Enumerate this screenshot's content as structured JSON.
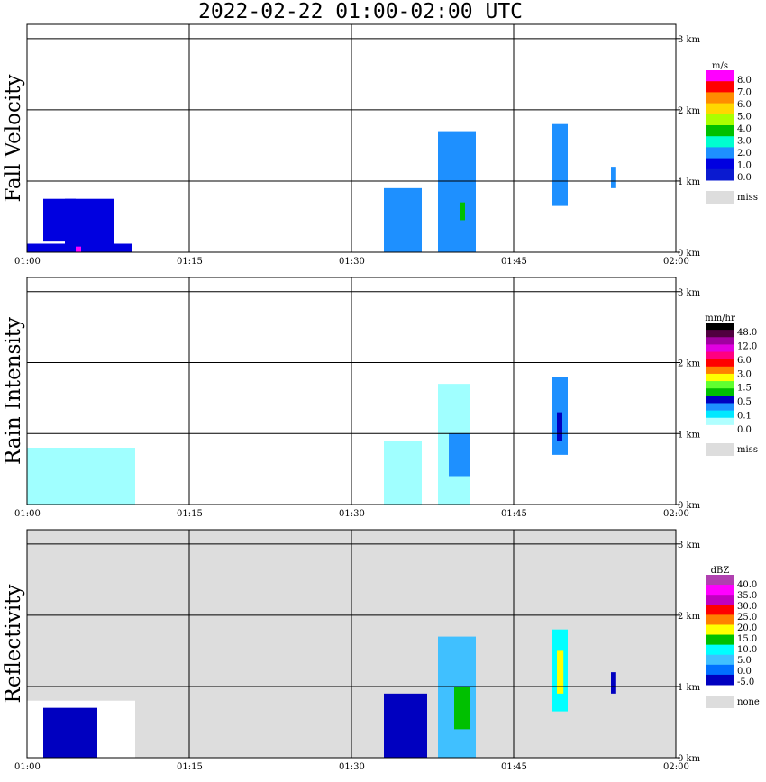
{
  "title": "2022-02-22   01:00-02:00 UTC",
  "x_ticks": [
    "01:00",
    "01:15",
    "01:30",
    "01:45",
    "02:00"
  ],
  "height_ticks": [
    "0 km",
    "1 km",
    "2 km",
    "3 km"
  ],
  "chart_data": [
    {
      "type": "heatmap",
      "title": "Fall Velocity",
      "ylabel": "Fall Velocity",
      "xlabel": "",
      "xlim": [
        "01:00",
        "02:00"
      ],
      "ylim_km": [
        0,
        3.2
      ],
      "grid": true,
      "background": "#ffffff",
      "legend": {
        "position": "right",
        "unit": "m/s",
        "labels": [
          "8.0",
          "7.0",
          "6.0",
          "5.0",
          "4.0",
          "3.0",
          "2.0",
          "1.0",
          "0.0"
        ],
        "colors": [
          "#ff00ff",
          "#ff0000",
          "#ff8c00",
          "#ffd700",
          "#aaff00",
          "#00c000",
          "#00ffd0",
          "#1e90ff",
          "#0000e0",
          "#0a1ad0"
        ],
        "miss_label": "miss",
        "miss_color": "#dddddd"
      },
      "echoes": [
        {
          "t": [
            0.0,
            9.7
          ],
          "h": [
            0.0,
            0.12
          ],
          "color": "#0000e0"
        },
        {
          "t": [
            1.5,
            4.5
          ],
          "h": [
            0.15,
            0.75
          ],
          "color": "#0000e0"
        },
        {
          "t": [
            3.5,
            8.0
          ],
          "h": [
            0.1,
            0.75
          ],
          "color": "#0000e0"
        },
        {
          "t": [
            4.5,
            5.0
          ],
          "h": [
            0.0,
            0.08
          ],
          "color": "#ff00ff"
        },
        {
          "t": [
            33.0,
            36.5
          ],
          "h": [
            0.0,
            0.9
          ],
          "color": "#1e90ff"
        },
        {
          "t": [
            38.0,
            41.5
          ],
          "h": [
            0.0,
            1.7
          ],
          "color": "#1e90ff"
        },
        {
          "t": [
            40.0,
            40.5
          ],
          "h": [
            0.45,
            0.7
          ],
          "color": "#00c000"
        },
        {
          "t": [
            48.5,
            50.0
          ],
          "h": [
            0.65,
            1.8
          ],
          "color": "#1e90ff"
        },
        {
          "t": [
            54.0,
            54.4
          ],
          "h": [
            0.9,
            1.2
          ],
          "color": "#1e90ff"
        }
      ]
    },
    {
      "type": "heatmap",
      "title": "Rain Intensity",
      "ylabel": "Rain Intensity",
      "xlabel": "",
      "xlim": [
        "01:00",
        "02:00"
      ],
      "ylim_km": [
        0,
        3.2
      ],
      "grid": true,
      "background": "#ffffff",
      "legend": {
        "position": "right",
        "unit": "mm/hr",
        "labels": [
          "48.0",
          "12.0",
          "6.0",
          "3.0",
          "1.5",
          "0.5",
          "0.1",
          "0.0"
        ],
        "colors": [
          "#000000",
          "#500040",
          "#a000a0",
          "#e000e0",
          "#ff0080",
          "#ff0000",
          "#ff8000",
          "#ffff00",
          "#60ff30",
          "#00c000",
          "#0000c0",
          "#1e90ff",
          "#00e8ff",
          "#b0ffff",
          "#ffffff"
        ],
        "miss_label": "miss",
        "miss_color": "#dddddd"
      },
      "echoes": [
        {
          "t": [
            0.0,
            10.0
          ],
          "h": [
            0.0,
            0.8
          ],
          "color": "#a0ffff"
        },
        {
          "t": [
            33.0,
            36.5
          ],
          "h": [
            0.0,
            0.9
          ],
          "color": "#a0ffff"
        },
        {
          "t": [
            38.0,
            41.0
          ],
          "h": [
            0.0,
            1.7
          ],
          "color": "#a0ffff"
        },
        {
          "t": [
            39.0,
            41.0
          ],
          "h": [
            0.4,
            1.0
          ],
          "color": "#1e90ff"
        },
        {
          "t": [
            48.5,
            50.0
          ],
          "h": [
            0.7,
            1.8
          ],
          "color": "#1e90ff"
        },
        {
          "t": [
            49.0,
            49.5
          ],
          "h": [
            0.9,
            1.3
          ],
          "color": "#0000c0"
        }
      ]
    },
    {
      "type": "heatmap",
      "title": "Reflectivity",
      "ylabel": "Reflectivity",
      "xlabel": "",
      "xlim": [
        "01:00",
        "02:00"
      ],
      "ylim_km": [
        0,
        3.2
      ],
      "grid": true,
      "background": "#dddddd",
      "legend": {
        "position": "right",
        "unit": "dBZ",
        "labels": [
          "40.0",
          "35.0",
          "30.0",
          "25.0",
          "20.0",
          "15.0",
          "10.0",
          "5.0",
          "0.0",
          "-5.0"
        ],
        "colors": [
          "#b040b0",
          "#ff00ff",
          "#c000c0",
          "#ff0000",
          "#ff8000",
          "#ffff00",
          "#00c000",
          "#00ffff",
          "#40c0ff",
          "#0070ff",
          "#0000c0"
        ],
        "miss_label": "none",
        "miss_color": "#dddddd"
      },
      "echoes": [
        {
          "t": [
            0.0,
            10.0
          ],
          "h": [
            0.0,
            0.8
          ],
          "color": "#ffffff"
        },
        {
          "t": [
            1.5,
            6.5
          ],
          "h": [
            0.0,
            0.7
          ],
          "color": "#0000c0"
        },
        {
          "t": [
            33.0,
            37.0
          ],
          "h": [
            0.0,
            0.9
          ],
          "color": "#0000c0"
        },
        {
          "t": [
            38.0,
            41.5
          ],
          "h": [
            0.0,
            1.7
          ],
          "color": "#40c0ff"
        },
        {
          "t": [
            39.5,
            41.0
          ],
          "h": [
            0.4,
            1.0
          ],
          "color": "#00c000"
        },
        {
          "t": [
            48.5,
            50.0
          ],
          "h": [
            0.65,
            1.8
          ],
          "color": "#00ffff"
        },
        {
          "t": [
            49.0,
            49.6
          ],
          "h": [
            0.9,
            1.5
          ],
          "color": "#ffff00"
        },
        {
          "t": [
            54.0,
            54.4
          ],
          "h": [
            0.9,
            1.2
          ],
          "color": "#0000c0"
        }
      ]
    }
  ]
}
